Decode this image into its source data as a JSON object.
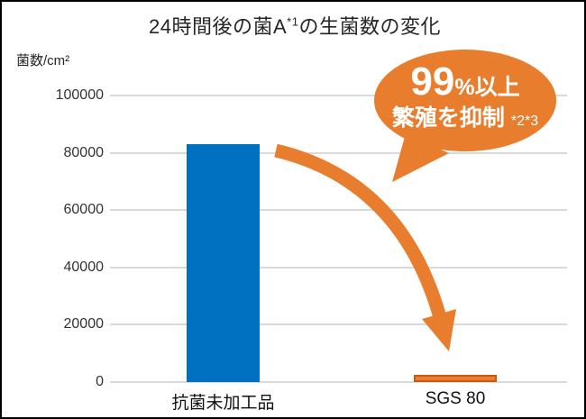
{
  "title": {
    "base": "24時間後の菌A",
    "sup": "*1",
    "rest": "の生菌数の変化"
  },
  "y_axis": {
    "unit_label": "菌数/cm²"
  },
  "callout": {
    "line1_big": "99",
    "line1_small": "%以上",
    "line2": "繁殖を抑制",
    "line2_note": "*2*3"
  },
  "colors": {
    "blue_bar": "#0070C0",
    "orange_accent": "#E87E2D",
    "orange_bar_fill": "#ED7D31",
    "orange_bar_border": "#C55A11",
    "gridline": "#D9D9D9",
    "text": "#262626"
  },
  "chart_data": {
    "type": "bar",
    "title": "24時間後の菌A*1の生菌数の変化",
    "categories": [
      "抗菌未加工品",
      "SGS 80"
    ],
    "values": [
      83000,
      2500
    ],
    "bar_colors": [
      "#0070C0",
      "#ED7D31"
    ],
    "xlabel": "",
    "ylabel": "菌数/cm²",
    "ylim": [
      0,
      100000
    ],
    "yticks": [
      0,
      20000,
      40000,
      60000,
      80000,
      100000
    ],
    "grid": true,
    "legend": false,
    "annotation": "99%以上 繁殖を抑制 *2*3 (矢印: 抗菌未加工品 から SGS 80 へ減少)"
  }
}
